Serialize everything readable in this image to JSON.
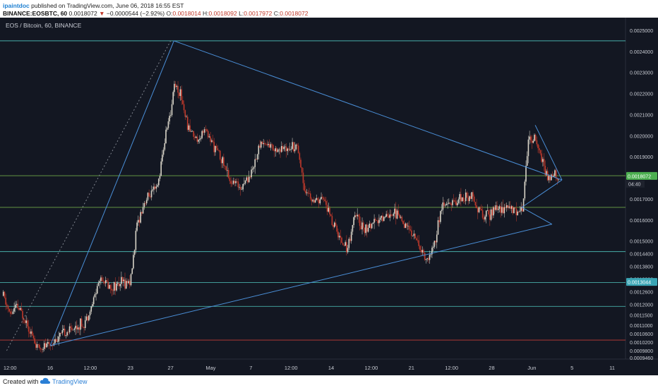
{
  "header": {
    "author": "ipaintdoc",
    "published": "published on TradingView.com, June 06, 2018 16:55 EST",
    "symbol": "BINANCE:EOSBTC, 60",
    "arrow": "▼",
    "change": "−0.0000544 (−2.92%)",
    "o_label": "O:",
    "o_value": "0.0018014",
    "h_label": "H:",
    "h_value": "0.0018092",
    "l_label": "L:",
    "l_value": "0.0017972",
    "c_label": "C:",
    "c_value": "0.0018072",
    "price_lead": "0.0018072"
  },
  "footer": {
    "created": "Created with",
    "brand": "TradingView"
  },
  "colors": {
    "background": "#131722",
    "up": "#d8d4c8",
    "down": "#c0392b",
    "trendline": "#4a8fd8",
    "level_green": "#7fbf4e",
    "level_teal": "#4fc7c0",
    "level_red": "#e0453a",
    "axis_text": "#c9ccd4"
  },
  "chart_data": {
    "type": "candlestick",
    "title": "EOS / Bitcoin, 60, BINANCE",
    "ylim": [
      0.00094,
      0.00256
    ],
    "y_ticks": [
      "0.0025000",
      "0.0024000",
      "0.0023000",
      "0.0022000",
      "0.0021000",
      "0.0020000",
      "0.0019000",
      "0.0017000",
      "0.0016000",
      "0.0015000",
      "0.0014400",
      "0.0013800",
      "0.0013200",
      "0.0012600",
      "0.0012000",
      "0.0011500",
      "0.0011000",
      "0.0010600",
      "0.0010200",
      "0.0009800",
      "0.0009460"
    ],
    "y_tick_values": [
      0.0025,
      0.0024,
      0.0023,
      0.0022,
      0.0021,
      0.002,
      0.0019,
      0.0017,
      0.0016,
      0.0015,
      0.00144,
      0.00138,
      0.00132,
      0.00126,
      0.0012,
      0.00115,
      0.0011,
      0.00106,
      0.00102,
      0.00098,
      0.000946
    ],
    "x_ticks": [
      "12:00",
      "16",
      "12:00",
      "23",
      "27",
      "May",
      "7",
      "12:00",
      "14",
      "12:00",
      "21",
      "12:00",
      "28",
      "Jun",
      "5",
      "11"
    ],
    "x_tick_positions": [
      0,
      12,
      24,
      36,
      48,
      60,
      72,
      84,
      96,
      108,
      120,
      132,
      144,
      156,
      168,
      180
    ],
    "x_range": [
      -3,
      184
    ],
    "current_price": "0.0018072",
    "current_price_value": 0.0018072,
    "countdown": "04:40",
    "level_label": "0.0013044",
    "level_label_value": 0.0013044,
    "horizontal_levels": [
      {
        "value": 0.00245,
        "color": "teal"
      },
      {
        "value": 0.00181,
        "color": "green"
      },
      {
        "value": 0.00166,
        "color": "green"
      },
      {
        "value": 0.00145,
        "color": "teal"
      },
      {
        "value": 0.001303,
        "color": "teal"
      },
      {
        "value": 0.00119,
        "color": "teal"
      },
      {
        "value": 0.00103,
        "color": "red"
      }
    ],
    "trendlines": [
      [
        [
          12,
          0.001004
        ],
        [
          49,
          0.00245
        ]
      ],
      [
        [
          12,
          0.001004
        ],
        [
          162,
          0.00158
        ]
      ],
      [
        [
          49,
          0.00245
        ],
        [
          165,
          0.00179
        ]
      ],
      [
        [
          153,
          0.00166
        ],
        [
          165,
          0.00179
        ]
      ],
      [
        [
          157,
          0.00205
        ],
        [
          165,
          0.00179
        ]
      ],
      [
        [
          153,
          0.00166
        ],
        [
          162,
          0.00158
        ]
      ]
    ],
    "dotted_line": [
      [
        -1,
        0.00098
      ],
      [
        48,
        0.00245
      ]
    ],
    "price_path": [
      [
        -2,
        0.00124
      ],
      [
        0,
        0.00115
      ],
      [
        2,
        0.00119
      ],
      [
        5,
        0.00112
      ],
      [
        8,
        0.00099
      ],
      [
        12,
        0.00101
      ],
      [
        15,
        0.00105
      ],
      [
        18,
        0.00108
      ],
      [
        22,
        0.00111
      ],
      [
        24,
        0.00117
      ],
      [
        26,
        0.00128
      ],
      [
        27,
        0.00133
      ],
      [
        30,
        0.00128
      ],
      [
        33,
        0.0013
      ],
      [
        36,
        0.00131
      ],
      [
        38,
        0.00158
      ],
      [
        40,
        0.00168
      ],
      [
        42,
        0.00172
      ],
      [
        44,
        0.00175
      ],
      [
        46,
        0.00195
      ],
      [
        47,
        0.00205
      ],
      [
        48,
        0.0021
      ],
      [
        49,
        0.00225
      ],
      [
        51,
        0.0022
      ],
      [
        53,
        0.00205
      ],
      [
        56,
        0.00198
      ],
      [
        58,
        0.00203
      ],
      [
        61,
        0.00195
      ],
      [
        63,
        0.0019
      ],
      [
        66,
        0.00178
      ],
      [
        69,
        0.00176
      ],
      [
        72,
        0.00182
      ],
      [
        75,
        0.00197
      ],
      [
        78,
        0.00195
      ],
      [
        81,
        0.00193
      ],
      [
        84,
        0.00196
      ],
      [
        86,
        0.00195
      ],
      [
        88,
        0.00175
      ],
      [
        91,
        0.00168
      ],
      [
        94,
        0.0017
      ],
      [
        96,
        0.0016
      ],
      [
        99,
        0.0015
      ],
      [
        101,
        0.00147
      ],
      [
        103,
        0.00162
      ],
      [
        106,
        0.00156
      ],
      [
        109,
        0.00158
      ],
      [
        112,
        0.00162
      ],
      [
        115,
        0.00164
      ],
      [
        118,
        0.00158
      ],
      [
        121,
        0.00152
      ],
      [
        123,
        0.00145
      ],
      [
        125,
        0.0014
      ],
      [
        127,
        0.0015
      ],
      [
        129,
        0.00166
      ],
      [
        132,
        0.00168
      ],
      [
        135,
        0.0017
      ],
      [
        138,
        0.00172
      ],
      [
        140,
        0.00166
      ],
      [
        142,
        0.00161
      ],
      [
        145,
        0.00165
      ],
      [
        148,
        0.00166
      ],
      [
        151,
        0.00165
      ],
      [
        153,
        0.00164
      ],
      [
        155,
        0.00198
      ],
      [
        157,
        0.002
      ],
      [
        159,
        0.00188
      ],
      [
        161,
        0.00178
      ],
      [
        162,
        0.00182
      ],
      [
        164,
        0.0018
      ]
    ]
  }
}
